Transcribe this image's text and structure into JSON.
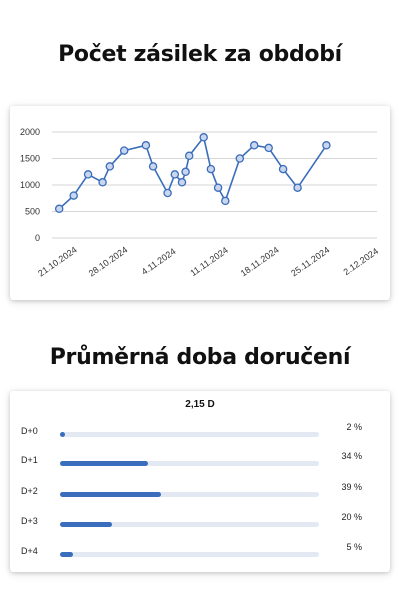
{
  "sections": {
    "chart_title": "Počet zásilek za období",
    "delivery_title": "Průměrná doba doručení"
  },
  "chart_data": {
    "type": "line",
    "title": "Počet zásilek za období",
    "xlabel": "",
    "ylabel": "",
    "ylim": [
      0,
      2000
    ],
    "yticks": [
      2000,
      1500,
      1000,
      500,
      0
    ],
    "grid": true,
    "x_start": "2024-10-20",
    "x_end": "2024-12-04",
    "xtick_labels": [
      {
        "date": "2024-10-21",
        "label": "21.10.2024"
      },
      {
        "date": "2024-10-28",
        "label": "28.10.2024"
      },
      {
        "date": "2024-11-04",
        "label": "4.11.2024"
      },
      {
        "date": "2024-11-11",
        "label": "11.11.2024"
      },
      {
        "date": "2024-11-18",
        "label": "18.11.2024"
      },
      {
        "date": "2024-11-25",
        "label": "25.11.2024"
      },
      {
        "date": "2024-12-02",
        "label": "2.12.2024"
      }
    ],
    "series": [
      {
        "color": "#3a6dbb",
        "points": [
          {
            "x": "2024-10-21",
            "y": 550
          },
          {
            "x": "2024-10-23",
            "y": 800
          },
          {
            "x": "2024-10-25",
            "y": 1200
          },
          {
            "x": "2024-10-27",
            "y": 1050
          },
          {
            "x": "2024-10-28",
            "y": 1350
          },
          {
            "x": "2024-10-30",
            "y": 1650
          },
          {
            "x": "2024-11-02",
            "y": 1750
          },
          {
            "x": "2024-11-03",
            "y": 1350
          },
          {
            "x": "2024-11-05",
            "y": 850
          },
          {
            "x": "2024-11-06",
            "y": 1200
          },
          {
            "x": "2024-11-07",
            "y": 1050
          },
          {
            "x": "2024-11-07T12:00",
            "y": 1250
          },
          {
            "x": "2024-11-08",
            "y": 1550
          },
          {
            "x": "2024-11-10",
            "y": 1900
          },
          {
            "x": "2024-11-11",
            "y": 1300
          },
          {
            "x": "2024-11-12",
            "y": 950
          },
          {
            "x": "2024-11-13",
            "y": 700
          },
          {
            "x": "2024-11-15",
            "y": 1500
          },
          {
            "x": "2024-11-17",
            "y": 1750
          },
          {
            "x": "2024-11-19",
            "y": 1700
          },
          {
            "x": "2024-11-21",
            "y": 1300
          },
          {
            "x": "2024-11-23",
            "y": 950
          },
          {
            "x": "2024-11-27",
            "y": 1750
          }
        ]
      }
    ]
  },
  "delivery": {
    "average": "2,15 D",
    "bar_color": "#3a6dbb",
    "track_color": "#e3e9f3",
    "rows": [
      {
        "label": "D+0",
        "pct_text": "2 %",
        "value": 2
      },
      {
        "label": "D+1",
        "pct_text": "34 %",
        "value": 34
      },
      {
        "label": "D+2",
        "pct_text": "39 %",
        "value": 39
      },
      {
        "label": "D+3",
        "pct_text": "20 %",
        "value": 20
      },
      {
        "label": "D+4",
        "pct_text": "5 %",
        "value": 5
      }
    ]
  }
}
